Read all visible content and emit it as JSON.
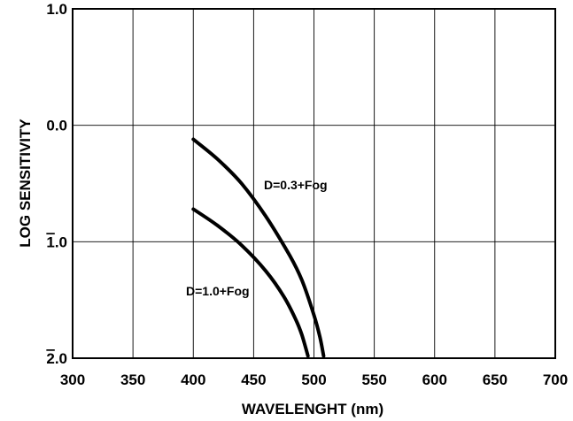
{
  "chart_data": {
    "type": "line",
    "xlabel": "WAVELENGHT (nm)",
    "ylabel": "LOG SENSITIVITY",
    "xlim": [
      300,
      700
    ],
    "ylim": [
      -2.0,
      1.0
    ],
    "x_ticks": [
      300,
      350,
      400,
      450,
      500,
      550,
      600,
      650,
      700
    ],
    "x_tick_labels": [
      "300",
      "350",
      "400",
      "450",
      "500",
      "550",
      "600",
      "650",
      "700"
    ],
    "y_ticks": [
      1.0,
      0.0,
      -1.0,
      -2.0
    ],
    "y_tick_labels": [
      {
        "bar": "",
        "text": "1.0"
      },
      {
        "bar": "",
        "text": "0.0"
      },
      {
        "bar": "1",
        "text": ".0"
      },
      {
        "bar": "2",
        "text": ".0"
      }
    ],
    "grid": true,
    "series": [
      {
        "name": "D=0.3+Fog",
        "x": [
          400,
          420,
          440,
          460,
          480,
          490,
          500,
          505,
          508
        ],
        "y": [
          -0.12,
          -0.29,
          -0.5,
          -0.78,
          -1.12,
          -1.33,
          -1.63,
          -1.82,
          -1.98
        ]
      },
      {
        "name": "D=1.0+Fog",
        "x": [
          400,
          420,
          440,
          460,
          475,
          485,
          490,
          495
        ],
        "y": [
          -0.72,
          -0.86,
          -1.03,
          -1.25,
          -1.47,
          -1.67,
          -1.8,
          -1.98
        ]
      }
    ]
  }
}
